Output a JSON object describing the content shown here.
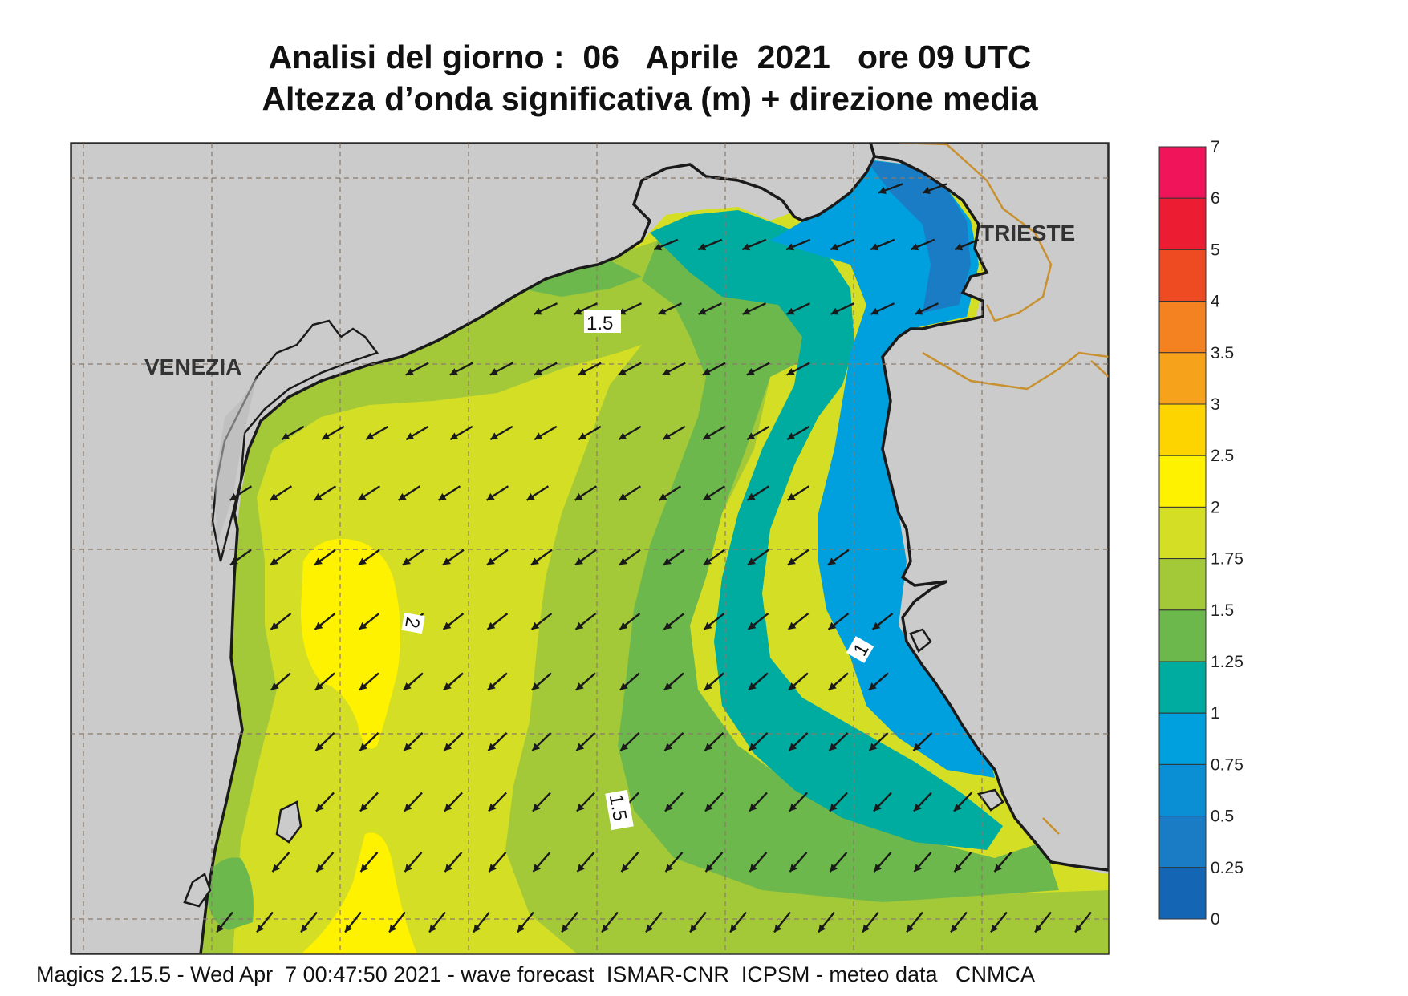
{
  "title": {
    "line1": "Analisi del giorno :  06   Aprile  2021   ore 09 UTC",
    "line2": "Altezza d’onda significativa (m) + direzione media"
  },
  "cities": {
    "venezia": "VENEZIA",
    "trieste": "TRIESTE"
  },
  "contour_labels": {
    "top": "1.5",
    "bottom": "1.5",
    "left": "2",
    "right": "1"
  },
  "legend": {
    "levels": [
      {
        "label": "7",
        "color": "#f0145a"
      },
      {
        "label": "6",
        "color": "#ec1d32"
      },
      {
        "label": "5",
        "color": "#ee4b22"
      },
      {
        "label": "4",
        "color": "#f58220"
      },
      {
        "label": "3.5",
        "color": "#f7a21b"
      },
      {
        "label": "3",
        "color": "#fdd300"
      },
      {
        "label": "2.5",
        "color": "#fff200"
      },
      {
        "label": "2",
        "color": "#d4de25"
      },
      {
        "label": "1.75",
        "color": "#a3c939"
      },
      {
        "label": "1.5",
        "color": "#6db84c"
      },
      {
        "label": "1.25",
        "color": "#00ab9f"
      },
      {
        "label": "1",
        "color": "#00a0df"
      },
      {
        "label": "0.75",
        "color": "#0a8fd4"
      },
      {
        "label": "0.5",
        "color": "#1a7cc4"
      },
      {
        "label": "0.25",
        "color": "#1565b5"
      },
      {
        "label": "0",
        "color": ""
      }
    ]
  },
  "colors": {
    "land": "#cbcbcb",
    "land_edge": "#9a9a9a",
    "coast": "#1a1a1a",
    "border": "#c8902f",
    "grid": "#8a7a6a",
    "arrow": "#1a1a1a"
  },
  "footer": "Magics 2.15.5 - Wed Apr  7 00:47:50 2021 - wave forecast  ISMAR-CNR  ICPSM - meteo data   CNMCA"
}
